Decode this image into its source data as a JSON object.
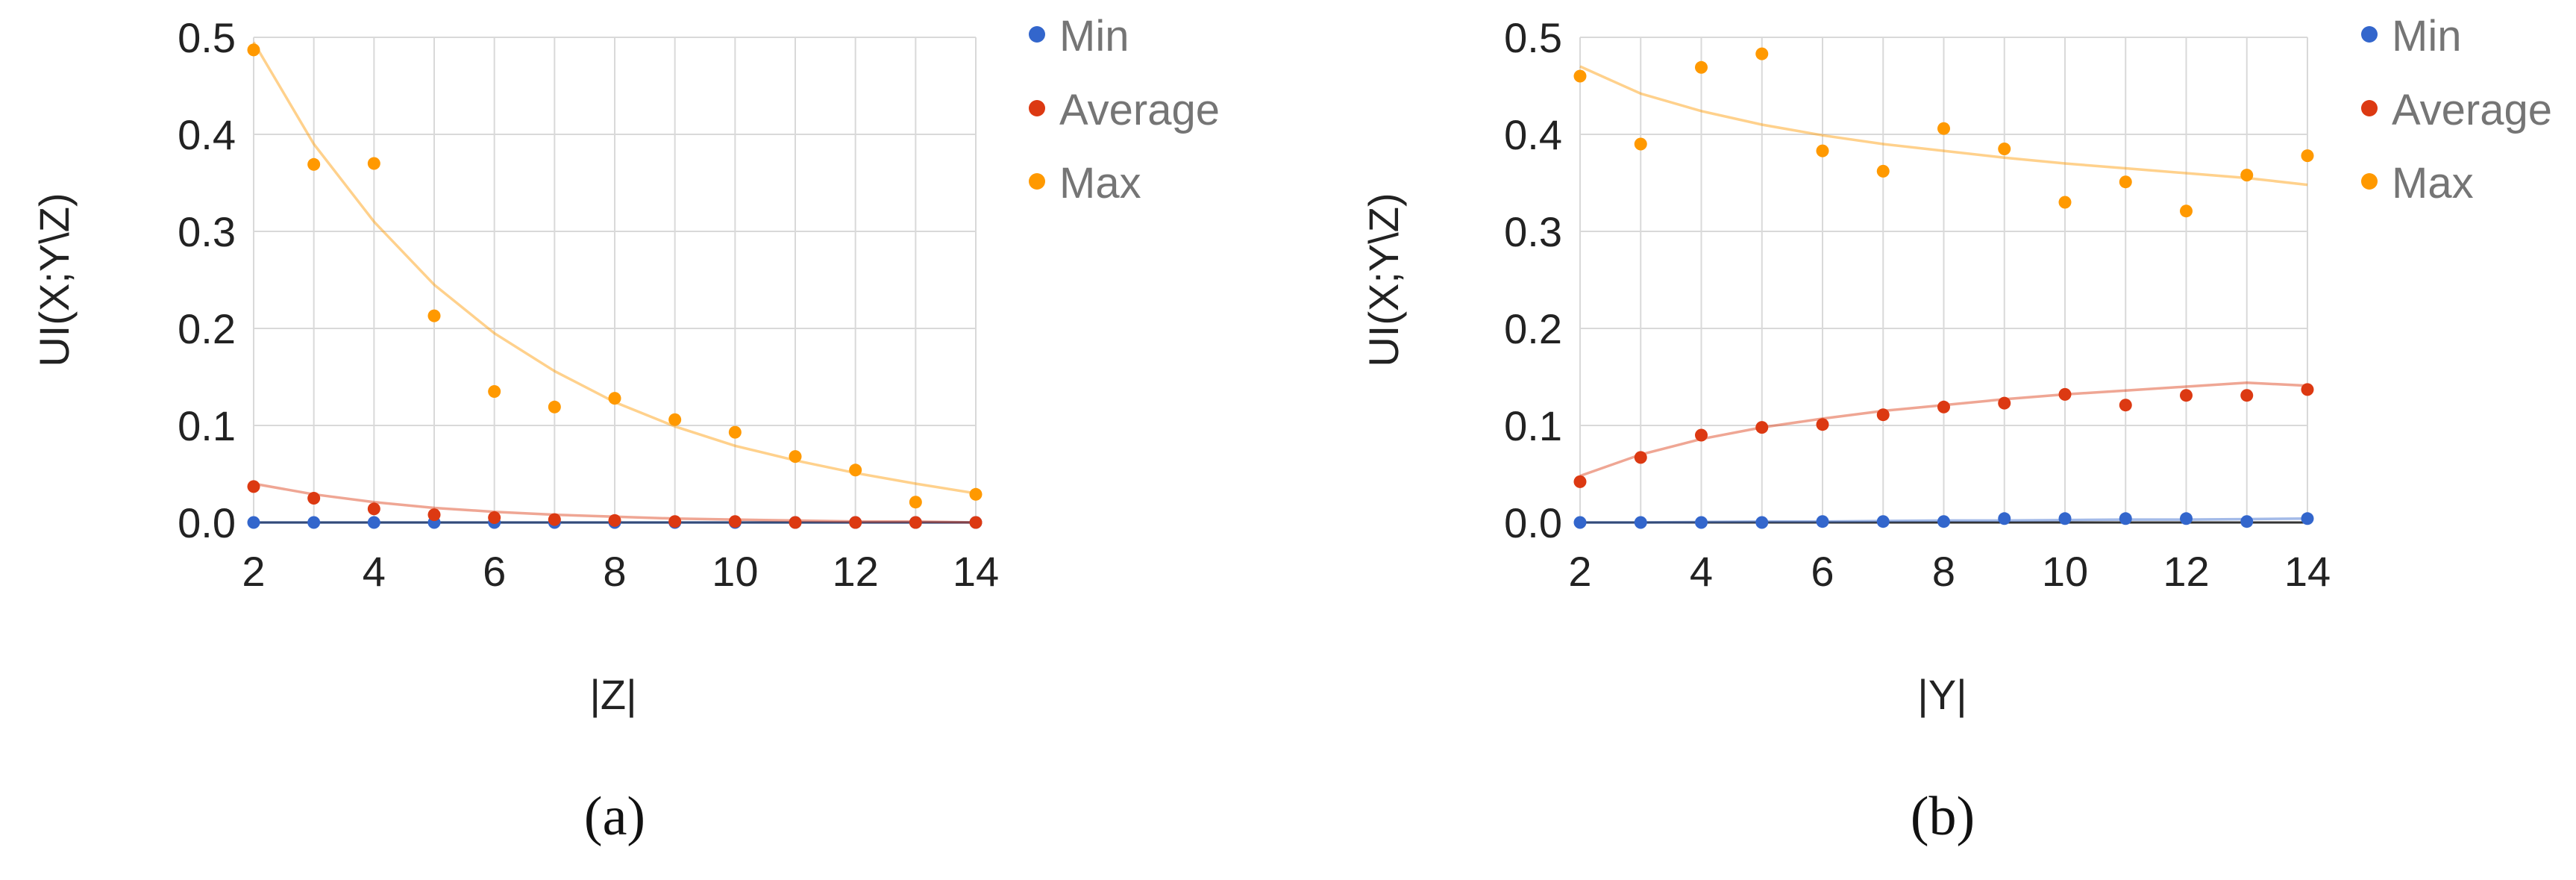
{
  "chart_data": [
    {
      "type": "scatter",
      "caption": "(a)",
      "xlabel": "|Z|",
      "ylabel": "UI(X;Y\\Z)",
      "xlim": [
        2,
        14
      ],
      "ylim": [
        0,
        0.5
      ],
      "xticks": [
        "2",
        "4",
        "6",
        "8",
        "10",
        "12",
        "14"
      ],
      "yticks": [
        "0.0",
        "0.1",
        "0.2",
        "0.3",
        "0.4",
        "0.5"
      ],
      "legend_position": "right",
      "grid": true,
      "x": [
        2,
        3,
        4,
        5,
        6,
        7,
        8,
        9,
        10,
        11,
        12,
        13,
        14
      ],
      "series": [
        {
          "name": "Min",
          "color": "#3366cc",
          "values": [
            0.0,
            0.0,
            0.0,
            0.0,
            0.0,
            0.0,
            0.0,
            0.0,
            0.0,
            0.0,
            0.0,
            0.0,
            0.0
          ],
          "trend": [
            0.0,
            0.0,
            0.0,
            0.0,
            0.0,
            0.0,
            0.0,
            0.0,
            0.0,
            0.0,
            0.0,
            0.0,
            0.0
          ]
        },
        {
          "name": "Average",
          "color": "#dc3912",
          "values": [
            0.037,
            0.025,
            0.014,
            0.008,
            0.005,
            0.003,
            0.002,
            0.001,
            0.001,
            0.0,
            0.0,
            0.0,
            0.0
          ],
          "trend": [
            0.04,
            0.029,
            0.021,
            0.015,
            0.011,
            0.008,
            0.006,
            0.004,
            0.003,
            0.002,
            0.001,
            0.001,
            0.0
          ]
        },
        {
          "name": "Max",
          "color": "#ff9900",
          "values": [
            0.487,
            0.369,
            0.37,
            0.213,
            0.135,
            0.119,
            0.128,
            0.106,
            0.093,
            0.068,
            0.054,
            0.021,
            0.029
          ],
          "trend": [
            0.495,
            0.39,
            0.31,
            0.245,
            0.195,
            0.156,
            0.124,
            0.099,
            0.079,
            0.064,
            0.051,
            0.04,
            0.03
          ]
        }
      ]
    },
    {
      "type": "scatter",
      "caption": "(b)",
      "xlabel": "|Y|",
      "ylabel": "UI(X;Y\\Z)",
      "xlim": [
        2,
        14
      ],
      "ylim": [
        0,
        0.5
      ],
      "xticks": [
        "2",
        "4",
        "6",
        "8",
        "10",
        "12",
        "14"
      ],
      "yticks": [
        "0.0",
        "0.1",
        "0.2",
        "0.3",
        "0.4",
        "0.5"
      ],
      "legend_position": "right",
      "grid": true,
      "x": [
        2,
        3,
        4,
        5,
        6,
        7,
        8,
        9,
        10,
        11,
        12,
        13,
        14
      ],
      "series": [
        {
          "name": "Min",
          "color": "#3366cc",
          "values": [
            0.0,
            0.0,
            0.0,
            0.0,
            0.001,
            0.001,
            0.001,
            0.004,
            0.004,
            0.004,
            0.004,
            0.001,
            0.004
          ],
          "trend": [
            0.0,
            0.0,
            0.0005,
            0.001,
            0.001,
            0.0015,
            0.002,
            0.002,
            0.0025,
            0.003,
            0.003,
            0.0035,
            0.004
          ]
        },
        {
          "name": "Average",
          "color": "#dc3912",
          "values": [
            0.042,
            0.067,
            0.09,
            0.098,
            0.101,
            0.111,
            0.119,
            0.123,
            0.132,
            0.121,
            0.131,
            0.131,
            0.137
          ],
          "trend": [
            0.048,
            0.07,
            0.086,
            0.098,
            0.107,
            0.115,
            0.121,
            0.127,
            0.132,
            0.136,
            0.14,
            0.144,
            0.141
          ]
        },
        {
          "name": "Max",
          "color": "#ff9900",
          "values": [
            0.46,
            0.39,
            0.469,
            0.483,
            0.383,
            0.362,
            0.406,
            0.385,
            0.33,
            0.351,
            0.321,
            0.358,
            0.378
          ],
          "trend": [
            0.47,
            0.442,
            0.424,
            0.41,
            0.399,
            0.39,
            0.383,
            0.376,
            0.37,
            0.365,
            0.36,
            0.355,
            0.348
          ]
        }
      ]
    }
  ]
}
